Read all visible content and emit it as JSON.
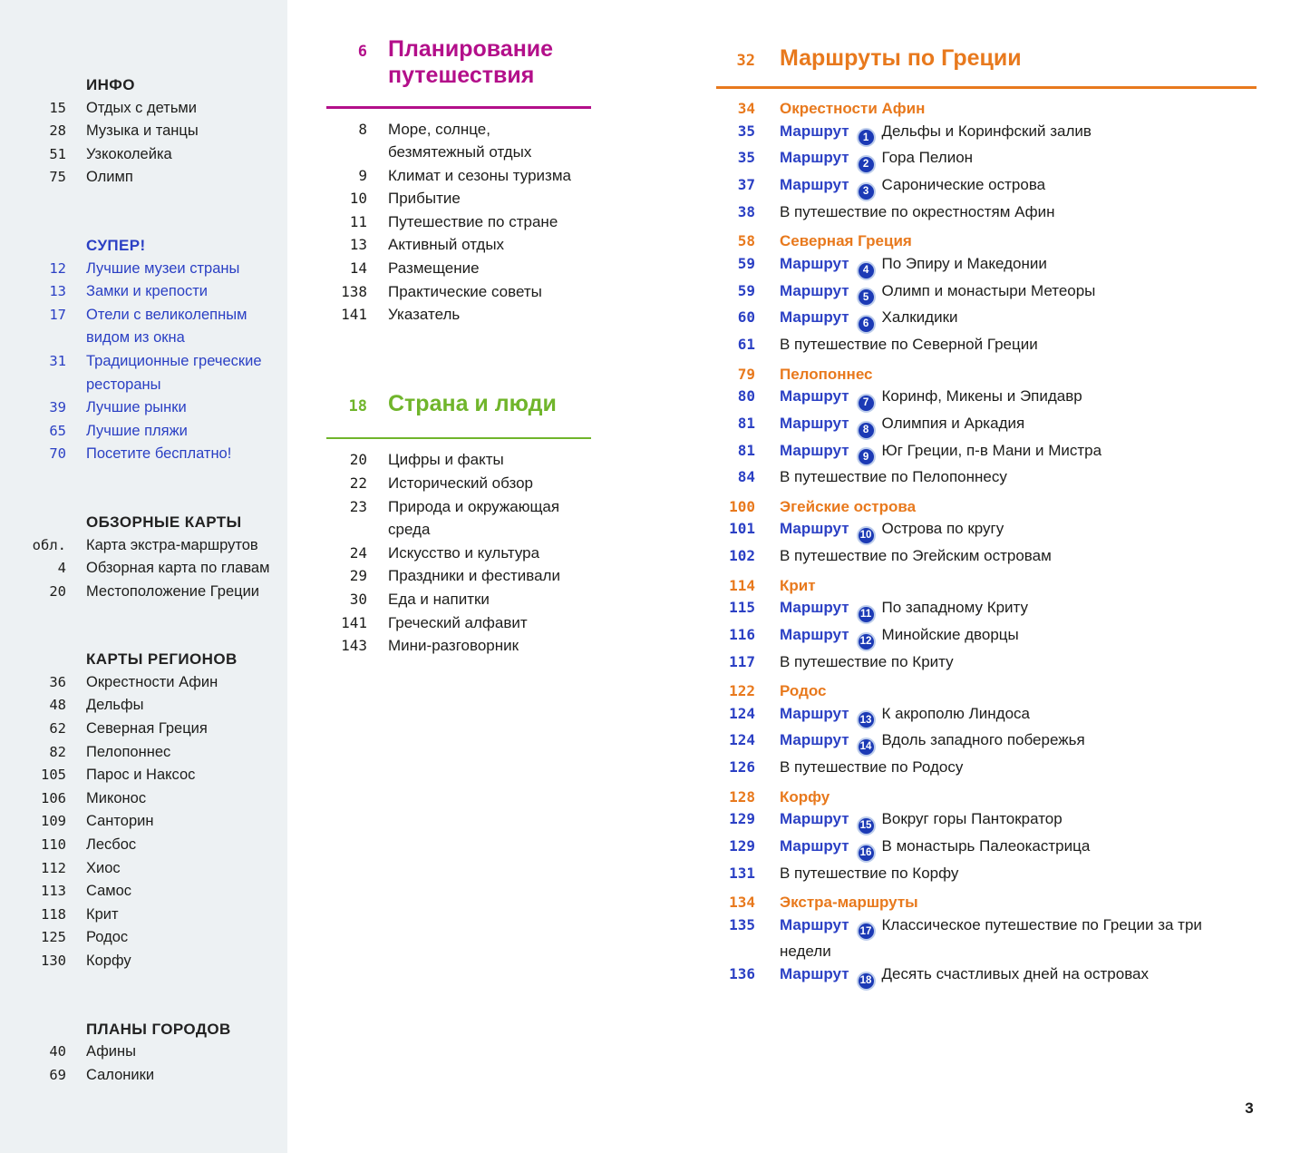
{
  "colors": {
    "blue": "#2b40c4",
    "orange": "#e8791d",
    "magenta": "#b30f8a",
    "green": "#70b52b",
    "text": "#1d1d1b",
    "sidebar_bg": "#edf1f3",
    "badge_bg": "#1c3ab5",
    "badge_ring": "#bdcdeb"
  },
  "footer_page_number": "3",
  "sidebar": {
    "sections": [
      {
        "title": "ИНФО",
        "style": "plain",
        "items": [
          {
            "page": "15",
            "label": "Отдых с детьми"
          },
          {
            "page": "28",
            "label": "Музыка и танцы"
          },
          {
            "page": "51",
            "label": "Узкоколейка"
          },
          {
            "page": "75",
            "label": "Олимп"
          }
        ]
      },
      {
        "title": "СУПЕР!",
        "style": "blue",
        "items": [
          {
            "page": "12",
            "label": "Лучшие музеи страны"
          },
          {
            "page": "13",
            "label": "Замки и крепости"
          },
          {
            "page": "17",
            "label": "Отели с великолепным\nвидом из окна"
          },
          {
            "page": "31",
            "label": "Традиционные греческие\nрестораны"
          },
          {
            "page": "39",
            "label": "Лучшие рынки"
          },
          {
            "page": "65",
            "label": "Лучшие пляжи"
          },
          {
            "page": "70",
            "label": "Посетите бесплатно!"
          }
        ]
      },
      {
        "title": "ОБЗОРНЫЕ КАРТЫ",
        "style": "plain",
        "items": [
          {
            "page": "обл.",
            "label": "Карта экстра-маршрутов"
          },
          {
            "page": "4",
            "label": "Обзорная карта по главам"
          },
          {
            "page": "20",
            "label": "Местоположение Греции"
          }
        ]
      },
      {
        "title": "КАРТЫ РЕГИОНОВ",
        "style": "plain",
        "items": [
          {
            "page": "36",
            "label": "Окрестности Афин"
          },
          {
            "page": "48",
            "label": "Дельфы"
          },
          {
            "page": "62",
            "label": "Северная Греция"
          },
          {
            "page": "82",
            "label": "Пелопоннес"
          },
          {
            "page": "105",
            "label": "Парос и Наксос"
          },
          {
            "page": "106",
            "label": "Миконос"
          },
          {
            "page": "109",
            "label": "Санторин"
          },
          {
            "page": "110",
            "label": "Лесбос"
          },
          {
            "page": "112",
            "label": "Хиос"
          },
          {
            "page": "113",
            "label": "Самос"
          },
          {
            "page": "118",
            "label": "Крит"
          },
          {
            "page": "125",
            "label": "Родос"
          },
          {
            "page": "130",
            "label": "Корфу"
          }
        ]
      },
      {
        "title": "ПЛАНЫ ГОРОДОВ",
        "style": "plain",
        "items": [
          {
            "page": "40",
            "label": "Афины"
          },
          {
            "page": "69",
            "label": "Салоники"
          }
        ]
      }
    ]
  },
  "middle": {
    "sections": [
      {
        "page": "6",
        "title": "Планирование\nпутешествия",
        "color": "#b30f8a",
        "items": [
          {
            "page": "8",
            "label": "Море, солнце,\nбезмятежный отдых"
          },
          {
            "page": "9",
            "label": "Климат и сезоны туризма"
          },
          {
            "page": "10",
            "label": "Прибытие"
          },
          {
            "page": "11",
            "label": "Путешествие по стране"
          },
          {
            "page": "13",
            "label": "Активный отдых"
          },
          {
            "page": "14",
            "label": "Размещение"
          },
          {
            "page": "138",
            "label": "Практические советы"
          },
          {
            "page": "141",
            "label": "Указатель"
          }
        ]
      },
      {
        "page": "18",
        "title": "Страна и люди",
        "color": "#70b52b",
        "items": [
          {
            "page": "20",
            "label": "Цифры и факты"
          },
          {
            "page": "22",
            "label": "Исторический обзор"
          },
          {
            "page": "23",
            "label": "Природа и окружающая среда"
          },
          {
            "page": "24",
            "label": "Искусство и культура"
          },
          {
            "page": "29",
            "label": "Праздники и фестивали"
          },
          {
            "page": "30",
            "label": "Еда и напитки"
          },
          {
            "page": "141",
            "label": "Греческий алфавит"
          },
          {
            "page": "143",
            "label": "Мини-разговорник"
          }
        ]
      }
    ]
  },
  "routes": {
    "page": "32",
    "title": "Маршруты по Греции",
    "color": "#e8791d",
    "route_word": "Маршрут",
    "groups": [
      {
        "page": "34",
        "title": "Окрестности Афин",
        "items": [
          {
            "page": "35",
            "badge": "1",
            "label": "Дельфы и Коринфский залив"
          },
          {
            "page": "35",
            "badge": "2",
            "label": "Гора Пелион"
          },
          {
            "page": "37",
            "badge": "3",
            "label": "Саронические острова"
          },
          {
            "page": "38",
            "label": "В путешествие по окрестностям Афин"
          }
        ]
      },
      {
        "page": "58",
        "title": "Северная Греция",
        "items": [
          {
            "page": "59",
            "badge": "4",
            "label": "По Эпиру и Македонии"
          },
          {
            "page": "59",
            "badge": "5",
            "label": "Олимп и монастыри Метеоры"
          },
          {
            "page": "60",
            "badge": "6",
            "label": "Халкидики"
          },
          {
            "page": "61",
            "label": "В путешествие по Северной Греции"
          }
        ]
      },
      {
        "page": "79",
        "title": "Пелопоннес",
        "items": [
          {
            "page": "80",
            "badge": "7",
            "label": "Коринф, Микены и Эпидавр"
          },
          {
            "page": "81",
            "badge": "8",
            "label": "Олимпия и Аркадия"
          },
          {
            "page": "81",
            "badge": "9",
            "label": "Юг Греции, п-в Мани и Мистра"
          },
          {
            "page": "84",
            "label": "В путешествие по Пелопоннесу"
          }
        ]
      },
      {
        "page": "100",
        "title": "Эгейские острова",
        "items": [
          {
            "page": "101",
            "badge": "10",
            "label": "Острова по кругу"
          },
          {
            "page": "102",
            "label": "В путешествие по Эгейским островам"
          }
        ]
      },
      {
        "page": "114",
        "title": "Крит",
        "items": [
          {
            "page": "115",
            "badge": "11",
            "label": "По западному Криту"
          },
          {
            "page": "116",
            "badge": "12",
            "label": "Минойские дворцы"
          },
          {
            "page": "117",
            "label": "В путешествие по Криту"
          }
        ]
      },
      {
        "page": "122",
        "title": "Родос",
        "items": [
          {
            "page": "124",
            "badge": "13",
            "label": "К акрополю Линдоса"
          },
          {
            "page": "124",
            "badge": "14",
            "label": "Вдоль западного побережья"
          },
          {
            "page": "126",
            "label": "В путешествие по Родосу"
          }
        ]
      },
      {
        "page": "128",
        "title": "Корфу",
        "items": [
          {
            "page": "129",
            "badge": "15",
            "label": "Вокруг горы Пантократор"
          },
          {
            "page": "129",
            "badge": "16",
            "label": "В монастырь Палеокастрица"
          },
          {
            "page": "131",
            "label": "В путешествие по Корфу"
          }
        ]
      },
      {
        "page": "134",
        "title": "Экстра-маршруты",
        "items": [
          {
            "page": "135",
            "badge": "17",
            "label": "Классическое путешествие по Греции за три недели"
          },
          {
            "page": "136",
            "badge": "18",
            "label": "Десять счастливых дней на островах"
          }
        ]
      }
    ]
  }
}
